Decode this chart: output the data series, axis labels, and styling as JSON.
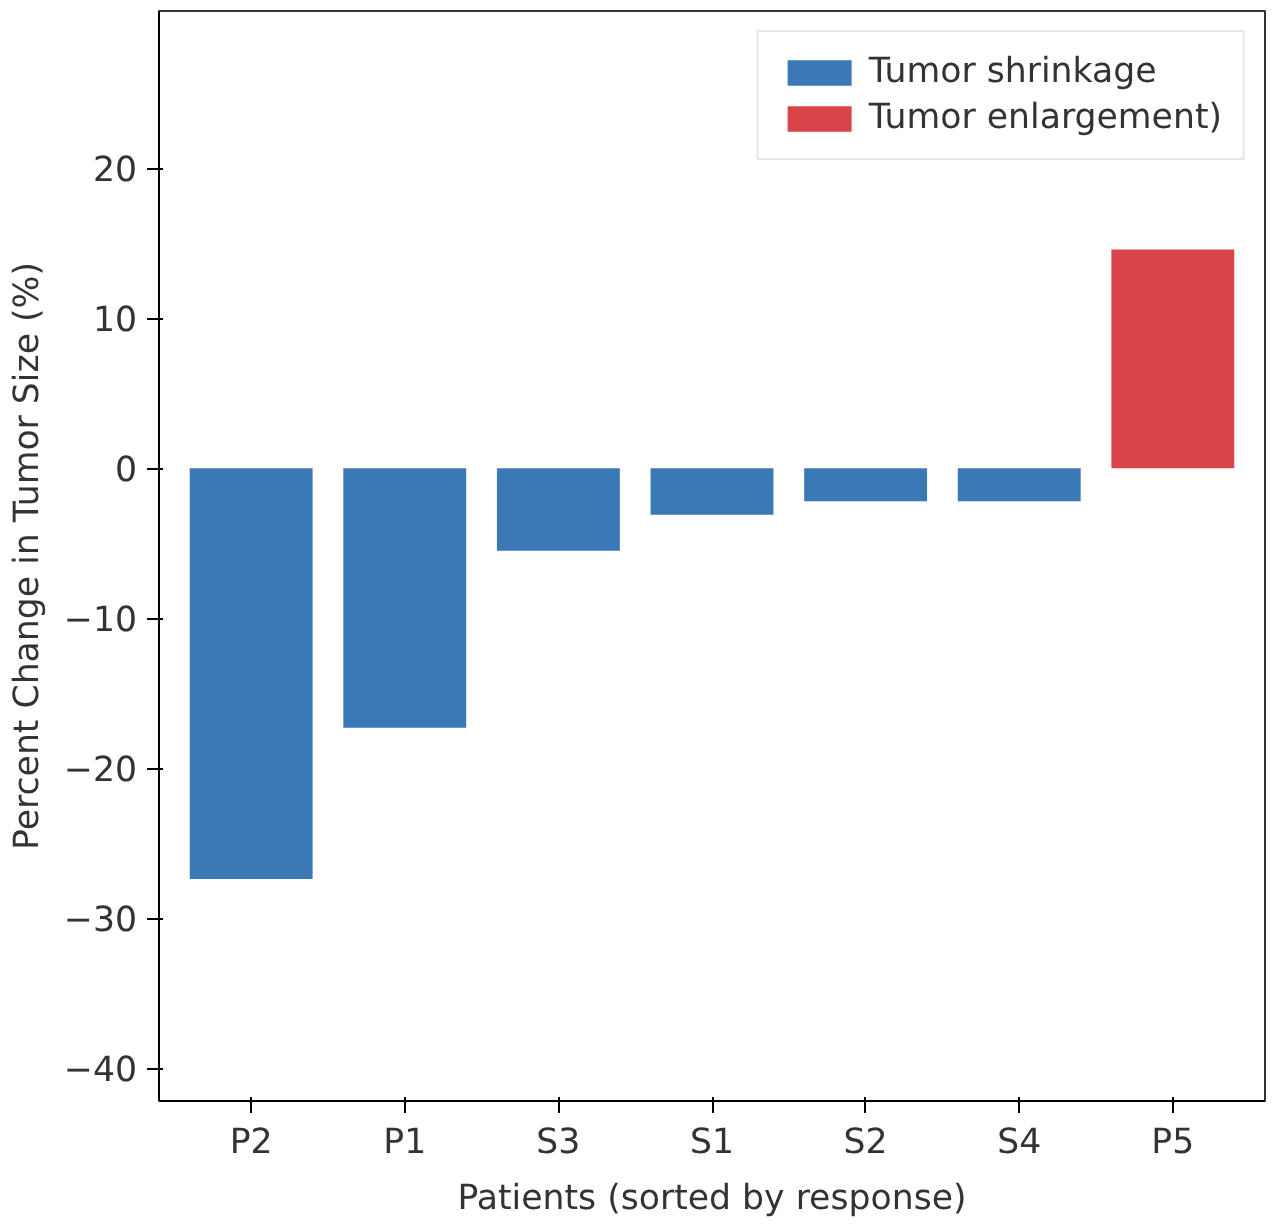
{
  "chart_data": {
    "type": "bar",
    "xlabel": "Patients (sorted by response)",
    "ylabel": "Percent Change in Tumor Size (%)",
    "categories": [
      "P2",
      "P1",
      "S3",
      "S1",
      "S2",
      "S4",
      "P5"
    ],
    "series": [
      {
        "name": "Tumor shrinkage",
        "color": "#3b78b6",
        "values": [
          -27.4,
          -17.3,
          -5.5,
          -3.1,
          -2.2,
          -2.2,
          null
        ]
      },
      {
        "name": "Tumor enlargement)",
        "color": "#d9434a",
        "values": [
          null,
          null,
          null,
          null,
          null,
          null,
          14.6
        ]
      }
    ],
    "stacked": true,
    "ylim": [
      -42.2,
      30.5
    ],
    "yticks": [
      -40,
      -30,
      -20,
      -10,
      0,
      10,
      20
    ],
    "grid": false,
    "legend": "top right"
  }
}
